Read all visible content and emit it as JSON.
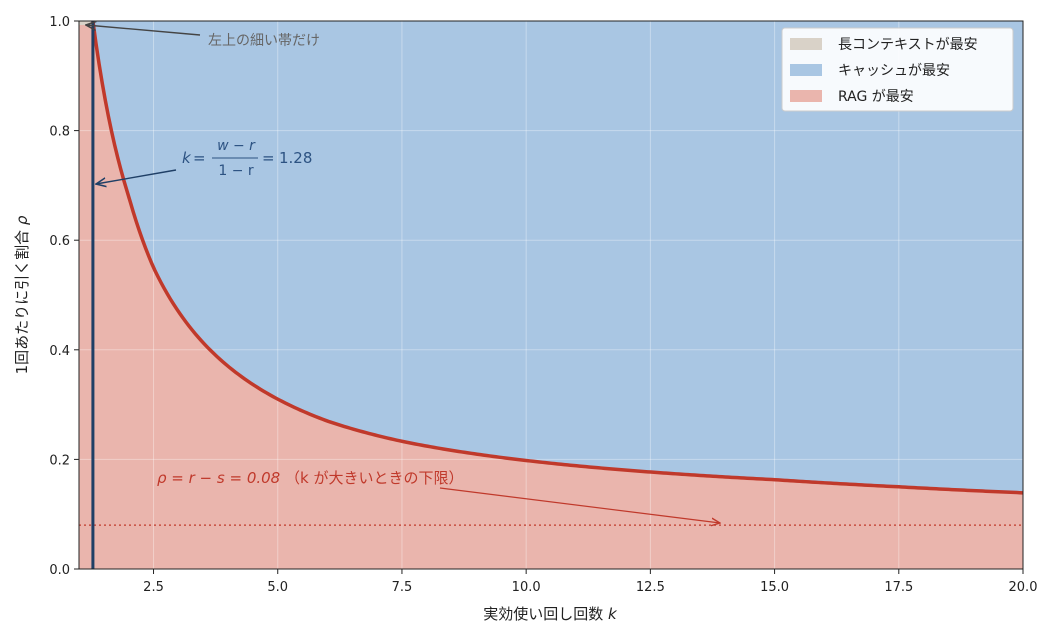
{
  "chart_data": {
    "type": "area",
    "xlabel": "実効使い回し回数",
    "xlabel_var": "k",
    "ylabel": "1回あたりに引く割合",
    "ylabel_var": "ρ",
    "xlim": [
      1.0,
      20.0
    ],
    "ylim": [
      0.0,
      1.0
    ],
    "xticks": [
      "2.5",
      "5.0",
      "7.5",
      "10.0",
      "12.5",
      "15.0",
      "17.5",
      "20.0"
    ],
    "xtick_values": [
      2.5,
      5.0,
      7.5,
      10.0,
      12.5,
      15.0,
      17.5,
      20.0
    ],
    "yticks": [
      "0.0",
      "0.2",
      "0.4",
      "0.6",
      "0.8",
      "1.0"
    ],
    "ytick_values": [
      0.0,
      0.2,
      0.4,
      0.6,
      0.8,
      1.0
    ],
    "grid": true,
    "legend_position": "top-right",
    "legend": [
      {
        "label": "長コンテキストが最安",
        "color": "#d9d2c8"
      },
      {
        "label": "キャッシュが最安",
        "color": "#a9c6e3"
      },
      {
        "label": "RAG が最安",
        "color": "#eab5ad"
      }
    ],
    "boundary_curve": {
      "color": "#c0392b",
      "x": [
        1.28,
        1.5,
        2.0,
        2.5,
        3.0,
        4.0,
        5.0,
        6.0,
        7.5,
        10.0,
        12.5,
        15.0,
        17.5,
        20.0
      ],
      "y": [
        1.0,
        0.87,
        0.68,
        0.55,
        0.47,
        0.37,
        0.31,
        0.27,
        0.233,
        0.198,
        0.177,
        0.163,
        0.15,
        0.139
      ]
    },
    "vertical_line": {
      "x": 1.28,
      "color": "#1f3f66"
    },
    "lower_bound_line": {
      "y": 0.08,
      "color": "#c0392b"
    },
    "annotations": {
      "top_left": "左上の細い帯だけ",
      "k_eq_lhs": "k",
      "k_eq_num": "w − r",
      "k_eq_den": "1 − r",
      "k_eq_val": "1.28",
      "rho_formula": "ρ = r − s = 0.08",
      "rho_note": "（k が大きいときの下限）"
    }
  }
}
